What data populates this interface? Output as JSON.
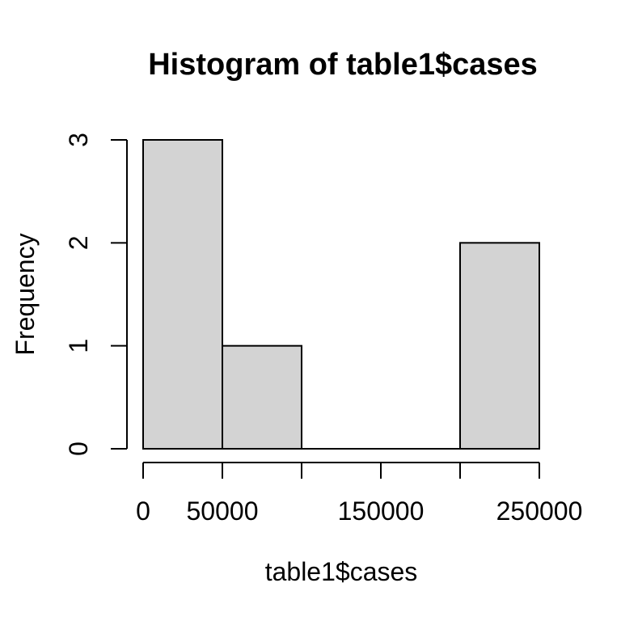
{
  "chart_data": {
    "type": "bar",
    "subtype": "histogram",
    "title": "Histogram of table1$cases",
    "xlabel": "table1$cases",
    "ylabel": "Frequency",
    "bin_edges": [
      0,
      50000,
      100000,
      150000,
      200000,
      250000
    ],
    "counts": [
      3,
      1,
      0,
      0,
      2
    ],
    "xlim": [
      0,
      250000
    ],
    "ylim": [
      0,
      3
    ],
    "x_ticks": [
      0,
      50000,
      100000,
      150000,
      200000,
      250000
    ],
    "x_tick_labels": [
      "0",
      "50000",
      "",
      "150000",
      "",
      "250000"
    ],
    "y_ticks": [
      0,
      1,
      2,
      3
    ],
    "y_tick_labels": [
      "0",
      "1",
      "2",
      "3"
    ],
    "grid": "off",
    "legend": "none",
    "colors": {
      "bar_fill": "#d3d3d3",
      "bar_stroke": "#000000",
      "axis": "#000000",
      "text": "#000000",
      "background": "#ffffff"
    }
  }
}
